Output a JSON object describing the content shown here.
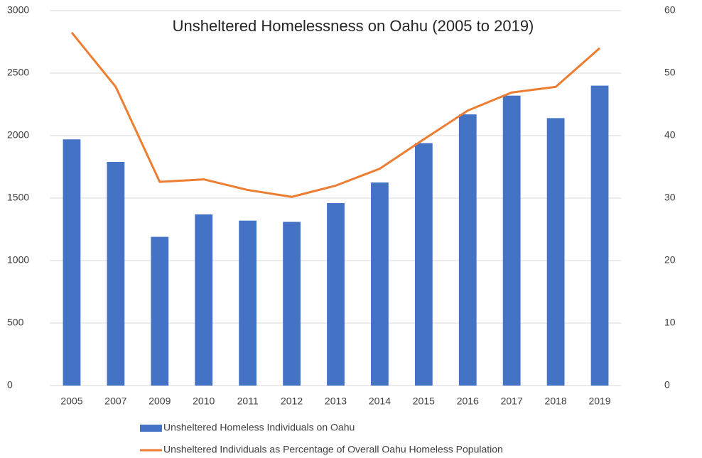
{
  "chart_data": {
    "type": "combo",
    "title": "Unsheltered Homelessness on Oahu (2005 to 2019)",
    "categories": [
      "2005",
      "2007",
      "2009",
      "2010",
      "2011",
      "2012",
      "2013",
      "2014",
      "2015",
      "2016",
      "2017",
      "2018",
      "2019"
    ],
    "series": [
      {
        "name": "Unsheltered Homeless Individuals on Oahu",
        "type": "bar",
        "color": "#4472c4",
        "values": [
          1970,
          1790,
          1190,
          1370,
          1320,
          1310,
          1460,
          1625,
          1940,
          2170,
          2320,
          2140,
          2400
        ]
      },
      {
        "name": "Unsheltered Individuals as Percentage of Overall Oahu Homeless Population",
        "type": "line",
        "axis": "y2",
        "color": "#ed7d31",
        "values": [
          56.5,
          47.8,
          32.6,
          33.0,
          31.3,
          30.2,
          32.0,
          34.7,
          39.4,
          44.0,
          46.9,
          47.8,
          54.0
        ]
      }
    ],
    "ylim": [
      0,
      3000
    ],
    "yticks": [
      0,
      500,
      1000,
      1500,
      2000,
      2500,
      3000
    ],
    "y2lim": [
      0,
      60
    ],
    "y2ticks": [
      0,
      10,
      20,
      30,
      40,
      50,
      60
    ],
    "grid": true,
    "legend": "bottom"
  }
}
